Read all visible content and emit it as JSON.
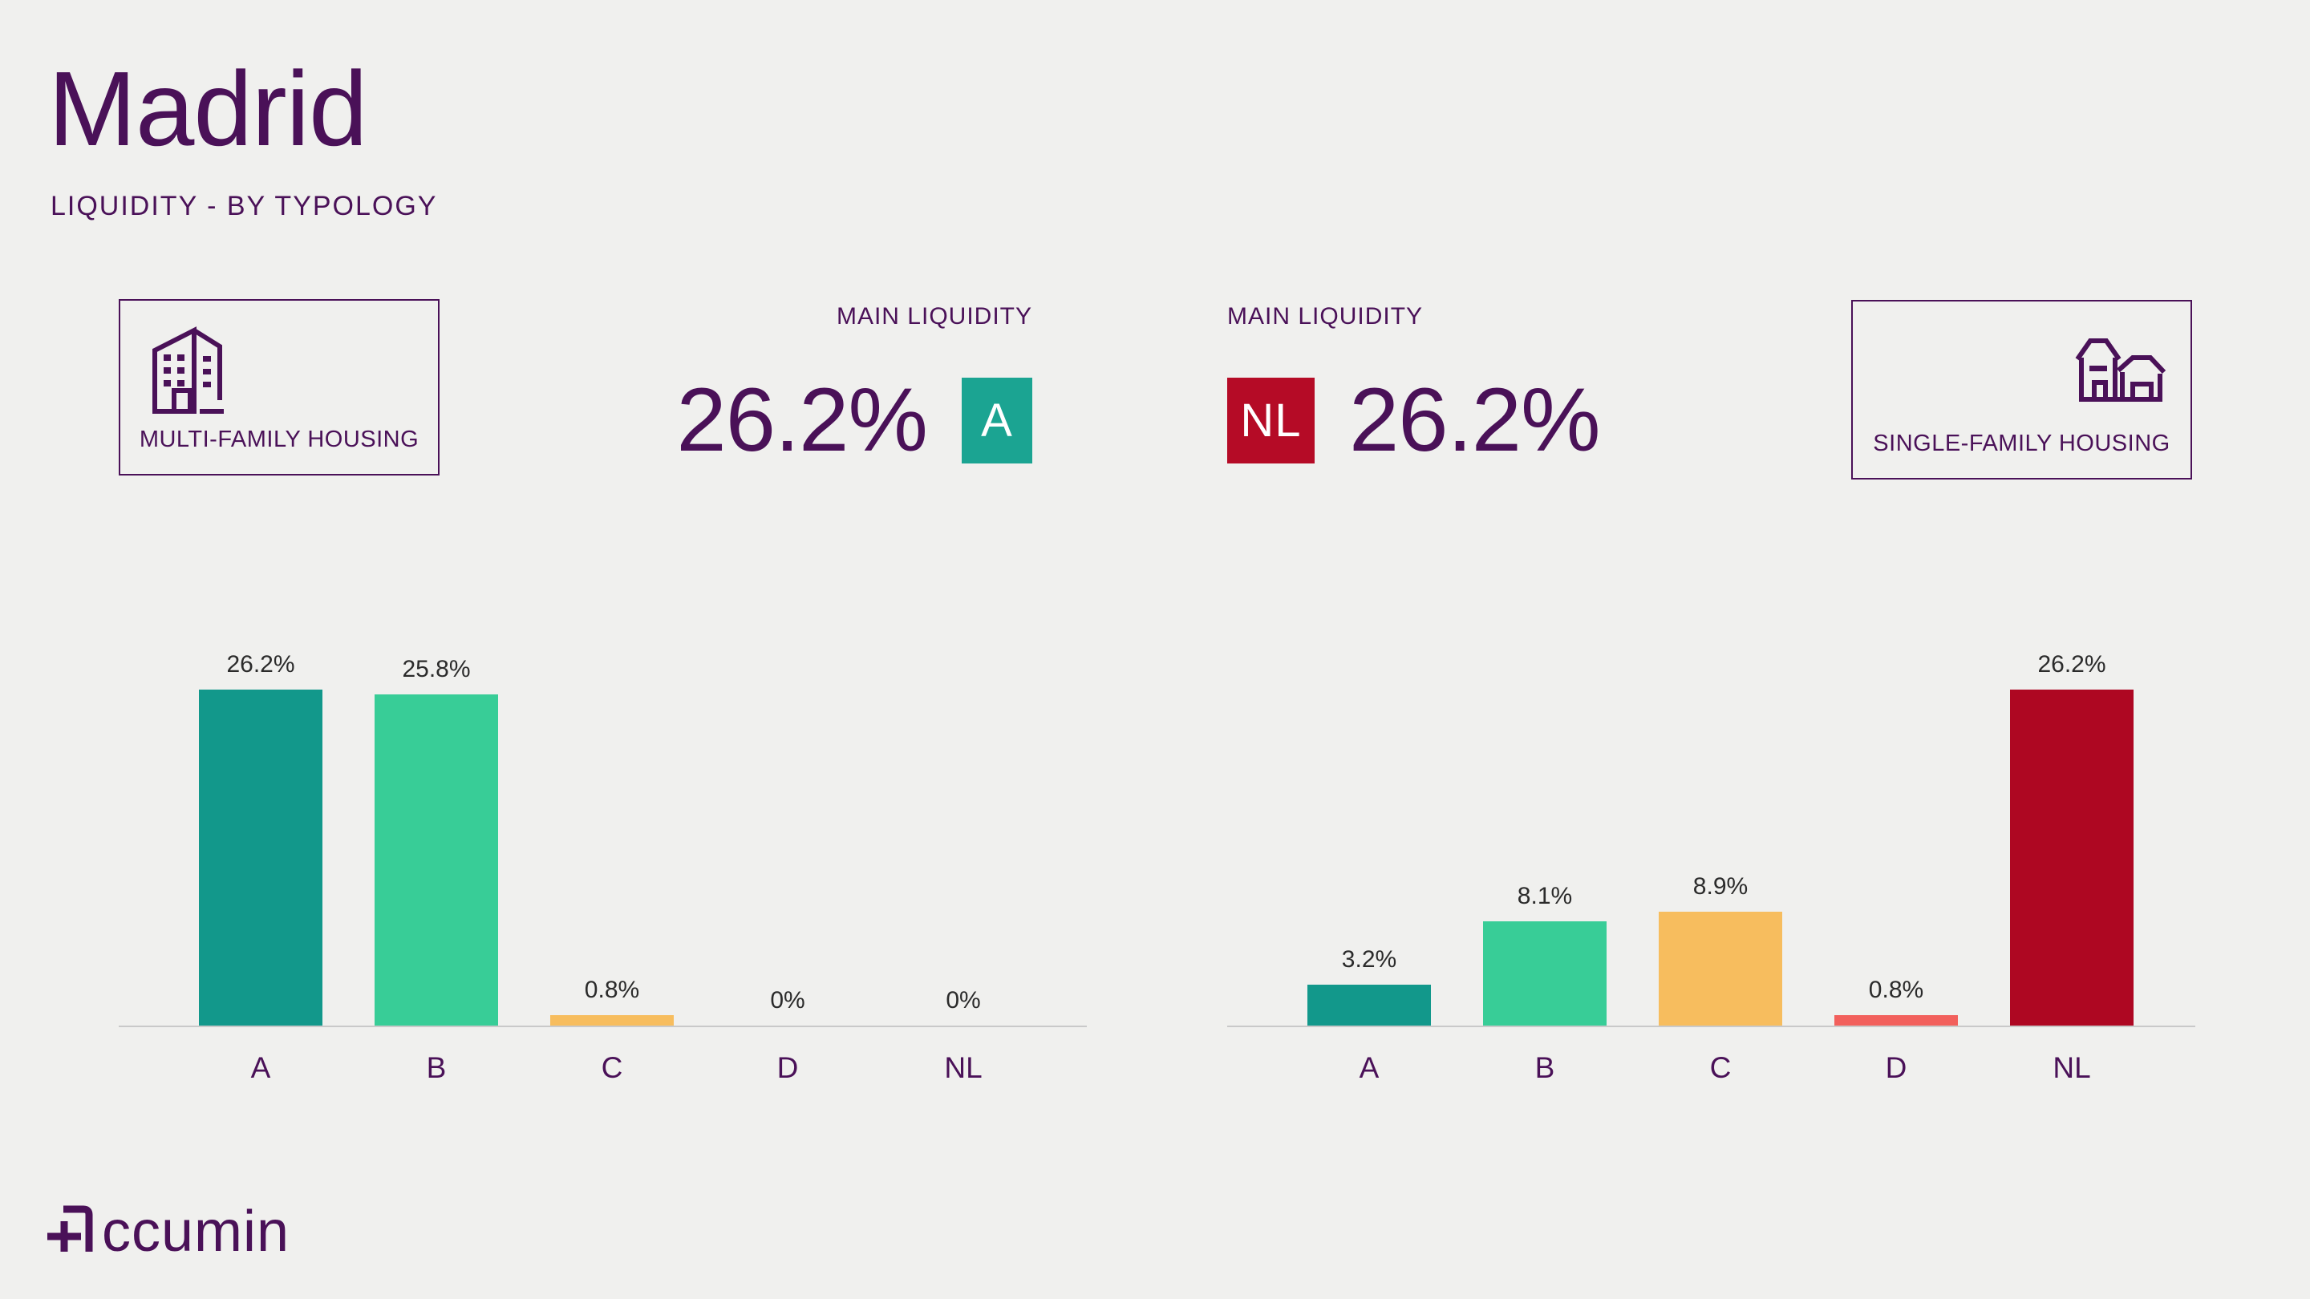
{
  "header": {
    "title": "Madrid",
    "subtitle": "LIQUIDITY - BY TYPOLOGY"
  },
  "panels": {
    "multi_family": {
      "label": "MULTI-FAMILY HOUSING"
    },
    "single_family": {
      "label": "SINGLE-FAMILY HOUSING"
    },
    "multi_family_liquidity": {
      "label": "MAIN LIQUIDITY",
      "value": "26.2%",
      "badge": "A",
      "badge_color": "#1BA492"
    },
    "single_family_liquidity": {
      "label": "MAIN LIQUIDITY",
      "value": "26.2%",
      "badge": "NL",
      "badge_color": "#B50B26"
    }
  },
  "colors": {
    "background": "#F0F0EE",
    "purple": "#4A1158",
    "teal": "#12988B",
    "green": "#38CD97",
    "orange": "#F7BD5E",
    "salmon": "#F2605C",
    "crimson": "#AE0722",
    "axis": "#C9C9C9",
    "value_label": "#2B2B2B"
  },
  "chart_data": [
    {
      "type": "bar",
      "group": "MULTI-FAMILY HOUSING",
      "categories": [
        "A",
        "B",
        "C",
        "D",
        "NL"
      ],
      "values": [
        26.2,
        25.8,
        0.8,
        0,
        0
      ],
      "value_labels": [
        "26.2%",
        "25.8%",
        "0.8%",
        "0%",
        "0%"
      ],
      "colors": [
        "#12988B",
        "#38CD97",
        "#F7BD5E",
        "#F2605C",
        "#AE0722"
      ],
      "title": "",
      "xlabel": "",
      "ylabel": "",
      "ylim": [
        0,
        30
      ],
      "grid": false,
      "legend": "none"
    },
    {
      "type": "bar",
      "group": "SINGLE-FAMILY HOUSING",
      "categories": [
        "A",
        "B",
        "C",
        "D",
        "NL"
      ],
      "values": [
        3.2,
        8.1,
        8.9,
        0.8,
        26.2
      ],
      "value_labels": [
        "3.2%",
        "8.1%",
        "8.9%",
        "0.8%",
        "26.2%"
      ],
      "colors": [
        "#12988B",
        "#38CD97",
        "#F7BD5E",
        "#F2605C",
        "#AE0722"
      ],
      "title": "",
      "xlabel": "",
      "ylabel": "",
      "ylim": [
        0,
        30
      ],
      "grid": false,
      "legend": "none"
    }
  ],
  "logo": {
    "name": "Accumin",
    "text": "ccumin"
  }
}
